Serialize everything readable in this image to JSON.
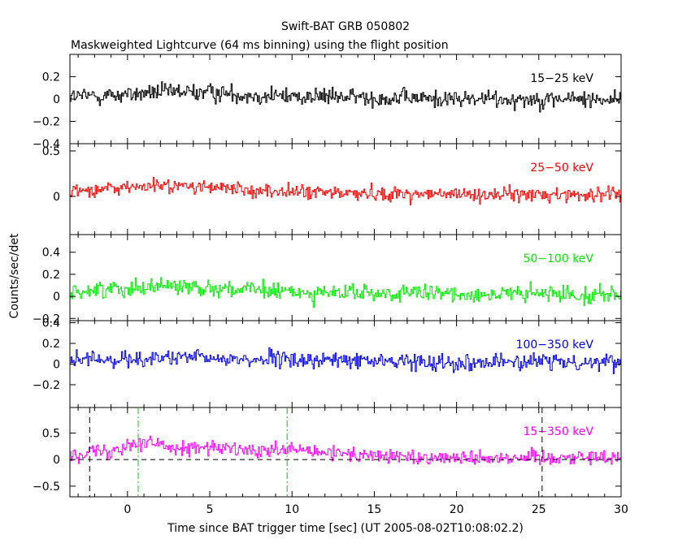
{
  "chart_data": {
    "type": "line",
    "title": "Swift-BAT GRB 050802",
    "subtitle": "Maskweighted Lightcurve (64 ms binning) using the flight position",
    "xlabel": "Time since BAT trigger time [sec] (UT 2005-08-02T10:08:02.2)",
    "ylabel": "Counts/sec/det",
    "xlim": [
      -3.5,
      30
    ],
    "x_ticks": [
      "0",
      "5",
      "10",
      "15",
      "20",
      "25",
      "30"
    ],
    "x_tick_values": [
      0,
      5,
      10,
      15,
      20,
      25,
      30
    ],
    "bin_width_s": 0.064,
    "grid": false,
    "panels": [
      {
        "band": "15-25 keV",
        "label": "15−25 keV",
        "color": "#000000",
        "ylim": [
          -0.4,
          0.4
        ],
        "y_tick_values": [
          0.2,
          0,
          -0.2,
          -0.4
        ],
        "y_tick_labels": [
          "0.2",
          "0",
          "−0.2",
          "−0.4"
        ],
        "noise_sigma": 0.055,
        "profile": [
          [
            -3.5,
            0.02
          ],
          [
            0,
            0.04
          ],
          [
            2,
            0.06
          ],
          [
            5,
            0.06
          ],
          [
            8,
            0.03
          ],
          [
            12,
            0.02
          ],
          [
            20,
            0.0
          ],
          [
            30,
            0.0
          ]
        ]
      },
      {
        "band": "25-50 keV",
        "label": "25−50 keV",
        "color": "#ff0000",
        "ylim": [
          -0.42,
          0.58
        ],
        "y_tick_values": [
          0.5,
          0
        ],
        "y_tick_labels": [
          "0.5",
          "0"
        ],
        "noise_sigma": 0.055,
        "profile": [
          [
            -3.5,
            0.06
          ],
          [
            0,
            0.1
          ],
          [
            2,
            0.12
          ],
          [
            5,
            0.1
          ],
          [
            8,
            0.06
          ],
          [
            12,
            0.04
          ],
          [
            20,
            0.02
          ],
          [
            30,
            0.02
          ]
        ]
      },
      {
        "band": "50-100 keV",
        "label": "50−100 keV",
        "color": "#00ee00",
        "ylim": [
          -0.22,
          0.56
        ],
        "y_tick_values": [
          0.4,
          0.2,
          0,
          -0.2
        ],
        "y_tick_labels": [
          "0.4",
          "0.2",
          "0",
          "−0.2"
        ],
        "noise_sigma": 0.055,
        "profile": [
          [
            -3.5,
            0.04
          ],
          [
            0,
            0.08
          ],
          [
            2,
            0.1
          ],
          [
            5,
            0.08
          ],
          [
            8,
            0.05
          ],
          [
            12,
            0.03
          ],
          [
            20,
            0.02
          ],
          [
            30,
            0.02
          ]
        ]
      },
      {
        "band": "100-350 keV",
        "label": "100−350 keV",
        "color": "#0000ee",
        "ylim": [
          -0.42,
          0.42
        ],
        "y_tick_values": [
          0.4,
          0.2,
          0,
          -0.2
        ],
        "y_tick_labels": [
          "0.4",
          "0.2",
          "0",
          "−0.2"
        ],
        "noise_sigma": 0.055,
        "profile": [
          [
            -3.5,
            0.03
          ],
          [
            0,
            0.05
          ],
          [
            3,
            0.06
          ],
          [
            6,
            0.05
          ],
          [
            10,
            0.04
          ],
          [
            20,
            0.02
          ],
          [
            30,
            0.02
          ]
        ]
      },
      {
        "band": "15-350 keV",
        "label": "15−350 keV",
        "color": "#ff00ff",
        "ylim": [
          -0.7,
          0.98
        ],
        "y_tick_values": [
          0.5,
          0,
          -0.5
        ],
        "y_tick_labels": [
          "0.5",
          "0",
          "−0.5"
        ],
        "noise_sigma": 0.1,
        "profile": [
          [
            -3.5,
            0.12
          ],
          [
            -1,
            0.18
          ],
          [
            0,
            0.3
          ],
          [
            1,
            0.32
          ],
          [
            3,
            0.24
          ],
          [
            6,
            0.2
          ],
          [
            8,
            0.14
          ],
          [
            10,
            0.18
          ],
          [
            12,
            0.12
          ],
          [
            16,
            0.06
          ],
          [
            20,
            0.04
          ],
          [
            30,
            0.05
          ]
        ]
      }
    ],
    "markers": [
      {
        "name": "t-start",
        "x": -2.3,
        "style": "black-dashed"
      },
      {
        "name": "t90-start",
        "x": 0.65,
        "style": "green-dashdot"
      },
      {
        "name": "t90-end",
        "x": 9.7,
        "style": "green-dashdot"
      },
      {
        "name": "t-end",
        "x": 25.2,
        "style": "black-dashed"
      }
    ]
  }
}
